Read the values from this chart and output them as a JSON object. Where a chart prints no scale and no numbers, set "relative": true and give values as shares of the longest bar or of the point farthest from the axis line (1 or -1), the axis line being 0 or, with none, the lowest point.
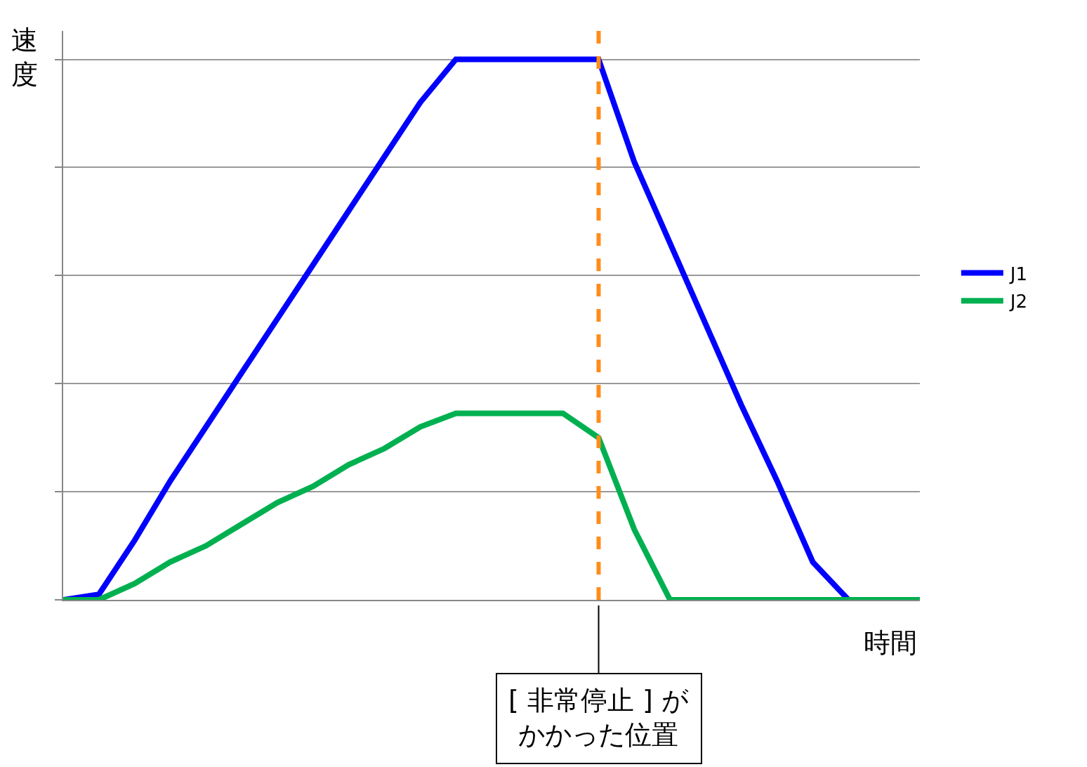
{
  "chart_data": {
    "type": "line",
    "relative": true,
    "xlabel": "時間",
    "ylabel": "速度",
    "categories": [
      null,
      null,
      null,
      null,
      null,
      null,
      null,
      null,
      null,
      null,
      null,
      null,
      null,
      null,
      null,
      null,
      null,
      null,
      null,
      null,
      null,
      null,
      null,
      null,
      null
    ],
    "series": [
      {
        "name": "J1",
        "color": "#0000ff",
        "values": [
          0,
          0.01,
          0.11,
          0.22,
          0.32,
          0.42,
          0.52,
          0.62,
          0.72,
          0.82,
          0.92,
          1,
          1,
          1,
          1,
          1,
          0.81,
          0.66,
          0.51,
          0.36,
          0.22,
          0.07,
          0,
          0,
          0
        ]
      },
      {
        "name": "J2",
        "color": "#00b050",
        "values": [
          0,
          0,
          0.03,
          0.07,
          0.1,
          0.14,
          0.18,
          0.21,
          0.25,
          0.28,
          0.32,
          0.345,
          0.345,
          0.345,
          0.345,
          0.3,
          0.13,
          0,
          0,
          0,
          0,
          0,
          0,
          0,
          0
        ]
      }
    ],
    "annotations": [
      "[ 非常停止 ] がかかった位置"
    ],
    "grid": "y",
    "legend": "right",
    "marker": "none",
    "line_style": "solid"
  }
}
